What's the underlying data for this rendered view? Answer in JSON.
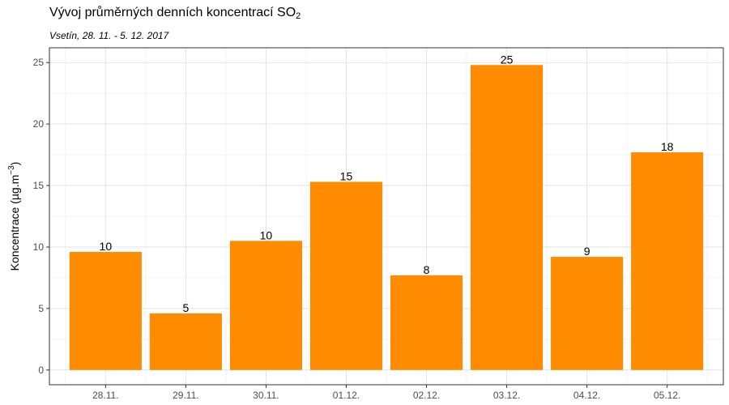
{
  "chart_data": {
    "type": "bar",
    "title_main": "Vývoj průměrných denních koncentrací SO",
    "title_sub": "2",
    "subtitle": "Vsetín, 28. 11. - 5. 12. 2017",
    "ylabel_main": "Koncentrace  (µg.m",
    "ylabel_sup": "−3",
    "ylabel_end": ")",
    "xlabel": "",
    "categories": [
      "28.11.",
      "29.11.",
      "30.11.",
      "01.12.",
      "02.12.",
      "03.12.",
      "04.12.",
      "05.12."
    ],
    "values": [
      9.6,
      4.6,
      10.5,
      15.3,
      7.7,
      24.8,
      9.2,
      17.7
    ],
    "data_labels": [
      "10",
      "5",
      "10",
      "15",
      "8",
      "25",
      "9",
      "18"
    ],
    "ylim": [
      -1.2,
      26.2
    ],
    "yticks": [
      0,
      5,
      10,
      15,
      20,
      25
    ],
    "ytick_labels": [
      "0",
      "5",
      "10",
      "15",
      "20",
      "25"
    ],
    "bar_color": "#FF8C00",
    "grid": true,
    "legend": "none"
  }
}
